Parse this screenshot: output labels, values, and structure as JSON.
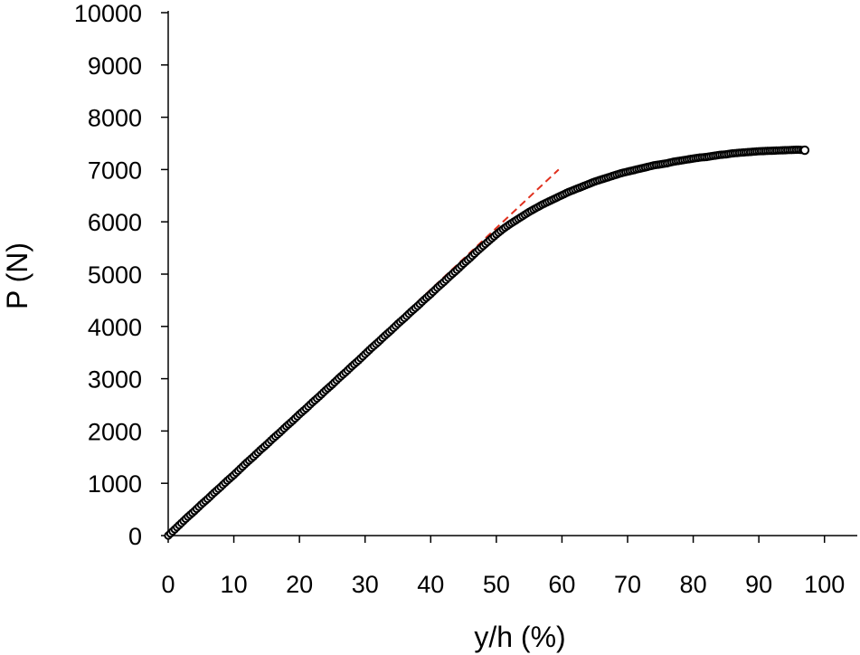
{
  "chart_data": {
    "type": "scatter",
    "title": "",
    "xlabel": "y/h (%)",
    "ylabel": "P (N)",
    "xlim": [
      0,
      105
    ],
    "ylim": [
      0,
      10000
    ],
    "xticks": [
      0,
      10,
      20,
      30,
      40,
      50,
      60,
      70,
      80,
      90,
      100
    ],
    "yticks": [
      0,
      1000,
      2000,
      3000,
      4000,
      5000,
      6000,
      7000,
      8000,
      9000,
      10000
    ],
    "grid": false,
    "legend": "none",
    "series": [
      {
        "style": "open-circle markers",
        "color": "#000000",
        "points": [
          [
            0,
            0
          ],
          [
            1,
            120
          ],
          [
            2,
            240
          ],
          [
            3,
            360
          ],
          [
            4,
            470
          ],
          [
            5,
            590
          ],
          [
            6,
            700
          ],
          [
            7,
            820
          ],
          [
            8,
            930
          ],
          [
            9,
            1050
          ],
          [
            10,
            1160
          ],
          [
            11,
            1280
          ],
          [
            12,
            1400
          ],
          [
            13,
            1510
          ],
          [
            14,
            1630
          ],
          [
            15,
            1740
          ],
          [
            16,
            1860
          ],
          [
            17,
            1970
          ],
          [
            18,
            2090
          ],
          [
            19,
            2200
          ],
          [
            20,
            2320
          ],
          [
            21,
            2430
          ],
          [
            22,
            2550
          ],
          [
            23,
            2660
          ],
          [
            24,
            2780
          ],
          [
            25,
            2890
          ],
          [
            26,
            3010
          ],
          [
            27,
            3120
          ],
          [
            28,
            3240
          ],
          [
            29,
            3350
          ],
          [
            30,
            3470
          ],
          [
            31,
            3590
          ],
          [
            32,
            3700
          ],
          [
            33,
            3820
          ],
          [
            34,
            3930
          ],
          [
            35,
            4050
          ],
          [
            36,
            4160
          ],
          [
            37,
            4280
          ],
          [
            38,
            4390
          ],
          [
            39,
            4510
          ],
          [
            40,
            4620
          ],
          [
            41,
            4740
          ],
          [
            42,
            4850
          ],
          [
            43,
            4970
          ],
          [
            44,
            5080
          ],
          [
            45,
            5200
          ],
          [
            46,
            5310
          ],
          [
            47,
            5430
          ],
          [
            48,
            5540
          ],
          [
            49,
            5650
          ],
          [
            50,
            5760
          ],
          [
            51,
            5860
          ],
          [
            52,
            5950
          ],
          [
            53,
            6030
          ],
          [
            54,
            6110
          ],
          [
            55,
            6190
          ],
          [
            56,
            6260
          ],
          [
            57,
            6330
          ],
          [
            58,
            6390
          ],
          [
            59,
            6450
          ],
          [
            60,
            6510
          ],
          [
            61,
            6570
          ],
          [
            62,
            6620
          ],
          [
            63,
            6670
          ],
          [
            64,
            6720
          ],
          [
            65,
            6770
          ],
          [
            66,
            6810
          ],
          [
            67,
            6850
          ],
          [
            68,
            6890
          ],
          [
            69,
            6930
          ],
          [
            70,
            6960
          ],
          [
            71,
            6990
          ],
          [
            72,
            7020
          ],
          [
            73,
            7050
          ],
          [
            74,
            7080
          ],
          [
            75,
            7100
          ],
          [
            76,
            7120
          ],
          [
            77,
            7150
          ],
          [
            78,
            7170
          ],
          [
            79,
            7190
          ],
          [
            80,
            7210
          ],
          [
            81,
            7230
          ],
          [
            82,
            7240
          ],
          [
            83,
            7260
          ],
          [
            84,
            7280
          ],
          [
            85,
            7290
          ],
          [
            86,
            7310
          ],
          [
            87,
            7320
          ],
          [
            88,
            7330
          ],
          [
            89,
            7340
          ],
          [
            90,
            7350
          ],
          [
            91,
            7355
          ],
          [
            92,
            7360
          ],
          [
            93,
            7365
          ],
          [
            94,
            7370
          ],
          [
            95,
            7375
          ],
          [
            96,
            7380
          ],
          [
            97,
            7370
          ]
        ]
      },
      {
        "style": "dashed linear fit",
        "color": "#e0301e",
        "points": [
          [
            0,
            0
          ],
          [
            59.5,
            7000
          ]
        ]
      }
    ]
  }
}
